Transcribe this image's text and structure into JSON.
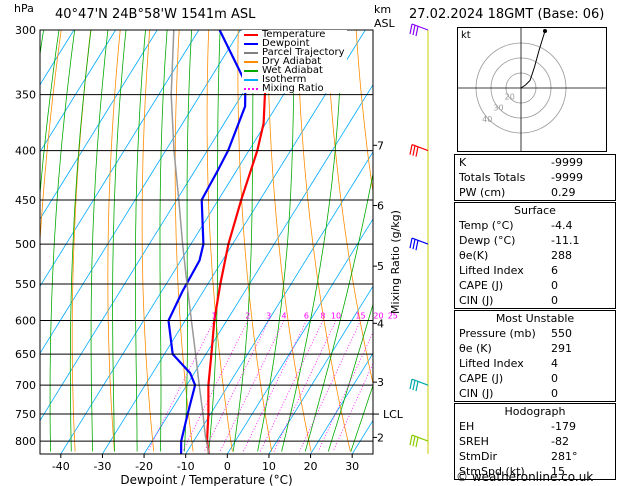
{
  "header": {
    "hpa_label": "hPa",
    "location": "40°47'N  24B°58'W  1541m  ASL",
    "km_label": "km",
    "asl_label": "ASL",
    "datetime": "27.02.2024  18GMT  (Base: 06)"
  },
  "legend": [
    {
      "label": "Temperature",
      "color": "#ff0000",
      "style": "solid"
    },
    {
      "label": "Dewpoint",
      "color": "#0000ff",
      "style": "solid"
    },
    {
      "label": "Parcel Trajectory",
      "color": "#808080",
      "style": "solid"
    },
    {
      "label": "Dry Adiabat",
      "color": "#ff8c00",
      "style": "solid"
    },
    {
      "label": "Wet Adiabat",
      "color": "#00aa00",
      "style": "solid"
    },
    {
      "label": "Isotherm",
      "color": "#00aaff",
      "style": "solid"
    },
    {
      "label": "Mixing Ratio",
      "color": "#ff00ff",
      "style": "dotted"
    }
  ],
  "chart_data": {
    "type": "line",
    "title": "",
    "xlabel": "Dewpoint / Temperature (°C)",
    "ylabel": "hPa",
    "xlim": [
      -45,
      35
    ],
    "ylim": [
      825,
      300
    ],
    "y_scale": "log",
    "pressure_ticks": [
      300,
      350,
      400,
      450,
      500,
      550,
      600,
      650,
      700,
      750,
      800
    ],
    "temperature_ticks": [
      -40,
      -30,
      -20,
      -10,
      0,
      10,
      20,
      30
    ],
    "km_ticks": [
      {
        "label": "7",
        "p": 395
      },
      {
        "label": "6",
        "p": 456
      },
      {
        "label": "5",
        "p": 527
      },
      {
        "label": "4",
        "p": 604
      },
      {
        "label": "3",
        "p": 695
      },
      {
        "label": "2",
        "p": 793
      }
    ],
    "lcl": {
      "label": "LCL",
      "p": 750
    },
    "mixing_ratio_axis_label": "Mixing Ratio (g/kg)",
    "mixing_ratio_labels": [
      "1",
      "2",
      "3",
      "4",
      "6",
      "8",
      "10",
      "15",
      "20",
      "25"
    ],
    "series": [
      {
        "name": "Temperature",
        "color": "#ff0000",
        "points": [
          [
            825,
            -4.4
          ],
          [
            800,
            -6.8
          ],
          [
            750,
            -10.5
          ],
          [
            700,
            -14.8
          ],
          [
            650,
            -18.7
          ],
          [
            600,
            -23.0
          ],
          [
            550,
            -27.0
          ],
          [
            500,
            -31.0
          ],
          [
            450,
            -34.5
          ],
          [
            400,
            -38.0
          ],
          [
            375,
            -40.5
          ],
          [
            350,
            -44.5
          ],
          [
            300,
            -52.0
          ]
        ]
      },
      {
        "name": "Dewpoint",
        "color": "#0000ff",
        "points": [
          [
            825,
            -11.1
          ],
          [
            800,
            -13.0
          ],
          [
            750,
            -15.5
          ],
          [
            700,
            -18.0
          ],
          [
            680,
            -21.0
          ],
          [
            650,
            -28.0
          ],
          [
            600,
            -34.0
          ],
          [
            560,
            -35.0
          ],
          [
            520,
            -35.5
          ],
          [
            500,
            -37.0
          ],
          [
            450,
            -44.0
          ],
          [
            420,
            -44.5
          ],
          [
            400,
            -45.0
          ],
          [
            360,
            -47.5
          ],
          [
            340,
            -51.0
          ],
          [
            300,
            -65.0
          ]
        ]
      },
      {
        "name": "Parcel Trajectory",
        "color": "#999999",
        "points": [
          [
            825,
            -4.4
          ],
          [
            790,
            -8.0
          ],
          [
            750,
            -11.8
          ],
          [
            700,
            -17.0
          ],
          [
            650,
            -22.5
          ],
          [
            600,
            -28.5
          ],
          [
            550,
            -35.0
          ],
          [
            500,
            -42.0
          ],
          [
            450,
            -49.5
          ],
          [
            400,
            -58.0
          ],
          [
            350,
            -67.0
          ],
          [
            300,
            -76.0
          ]
        ]
      }
    ]
  },
  "hodograph": {
    "label": "kt",
    "ring_labels": [
      "20",
      "30",
      "40"
    ],
    "points": [
      [
        0,
        0
      ],
      [
        3,
        2
      ],
      [
        6,
        5
      ],
      [
        9,
        14
      ],
      [
        12,
        25
      ],
      [
        16,
        38
      ]
    ]
  },
  "wind_barbs": [
    {
      "p": 300,
      "color": "#8800ff"
    },
    {
      "p": 400,
      "color": "#ff0000"
    },
    {
      "p": 500,
      "color": "#0000ff"
    },
    {
      "p": 700,
      "color": "#00aaaa"
    },
    {
      "p": 800,
      "color": "#88cc00"
    }
  ],
  "panel": {
    "top": [
      {
        "label": "K",
        "value": "-9999"
      },
      {
        "label": "Totals Totals",
        "value": "-9999"
      },
      {
        "label": "PW (cm)",
        "value": "0.29"
      }
    ],
    "surface": {
      "title": "Surface",
      "rows": [
        {
          "label": "Temp (°C)",
          "value": "-4.4"
        },
        {
          "label": "Dewp (°C)",
          "value": "-11.1"
        },
        {
          "label": "θe(K)",
          "value": "288"
        },
        {
          "label": "Lifted Index",
          "value": "6"
        },
        {
          "label": "CAPE (J)",
          "value": "0"
        },
        {
          "label": "CIN (J)",
          "value": "0"
        }
      ]
    },
    "unstable": {
      "title": "Most Unstable",
      "rows": [
        {
          "label": "Pressure (mb)",
          "value": "550"
        },
        {
          "label": "θe (K)",
          "value": "291"
        },
        {
          "label": "Lifted Index",
          "value": "4"
        },
        {
          "label": "CAPE (J)",
          "value": "0"
        },
        {
          "label": "CIN (J)",
          "value": "0"
        }
      ]
    },
    "hodo": {
      "title": "Hodograph",
      "rows": [
        {
          "label": "EH",
          "value": "-179"
        },
        {
          "label": "SREH",
          "value": "-82"
        },
        {
          "label": "StmDir",
          "value": "281°"
        },
        {
          "label": "StmSpd (kt)",
          "value": "15"
        }
      ]
    }
  },
  "copyright": "© weatheronline.co.uk"
}
